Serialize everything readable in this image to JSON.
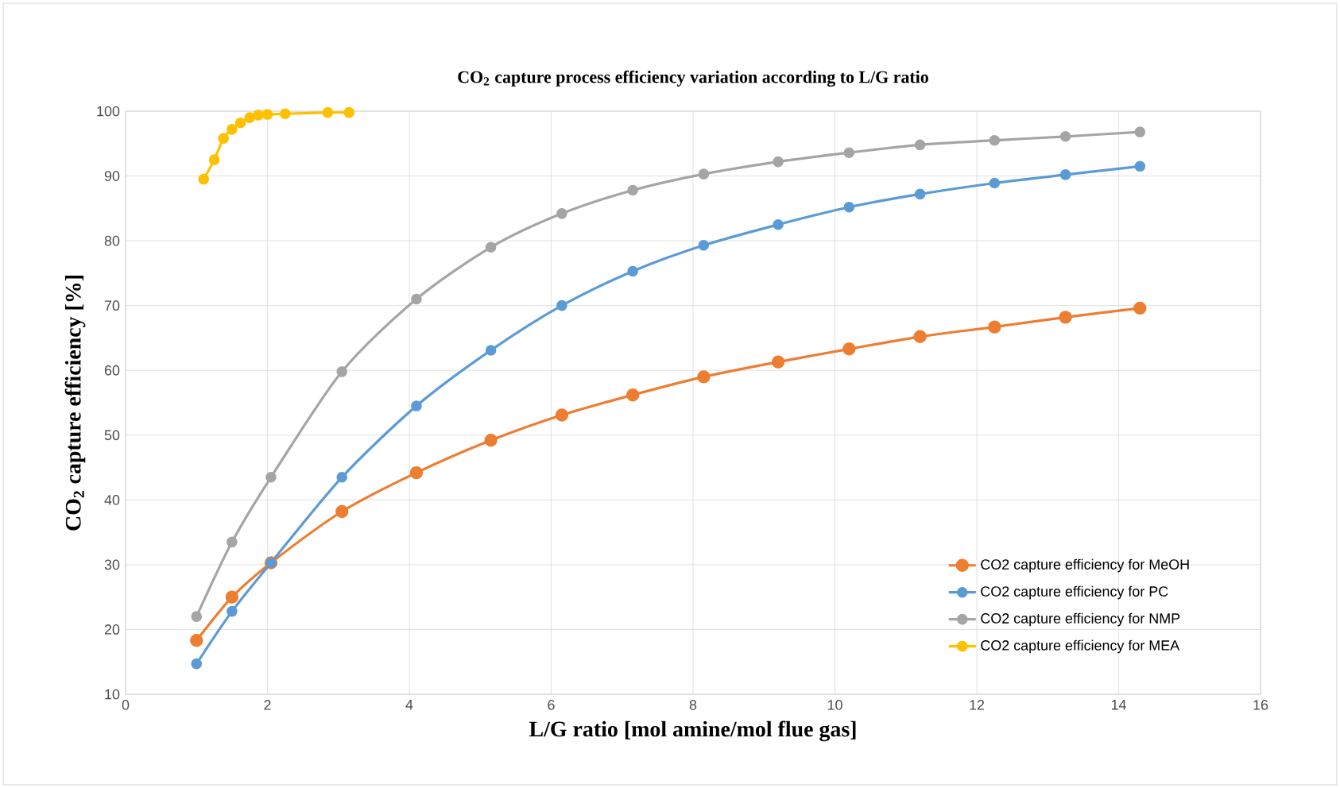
{
  "chart_data": {
    "type": "line",
    "title": "CO$_{2}$ capture process efficiency variation according to L/G ratio",
    "xlabel": "L/G ratio [mol  amine/mol  flue gas]",
    "ylabel": "CO$_{2}$ capture efficiency [%]",
    "xlim": [
      0,
      16
    ],
    "xticks": [
      0,
      2,
      4,
      6,
      8,
      10,
      12,
      14,
      16
    ],
    "ylim": [
      10,
      100
    ],
    "yticks": [
      10,
      20,
      30,
      40,
      50,
      60,
      70,
      80,
      90,
      100
    ],
    "grid": true,
    "legend": "bottom right",
    "marker": "circle",
    "line_style": "solid",
    "series": [
      {
        "name": "CO2 capture efficiency for MeOH",
        "color": "#ed7d31",
        "x": [
          1,
          1.5,
          2.05,
          3.05,
          4.1,
          5.15,
          6.15,
          7.15,
          8.15,
          9.2,
          10.2,
          11.2,
          12.25,
          13.25,
          14.3
        ],
        "values": [
          18.3,
          25,
          30.3,
          38.2,
          44.2,
          49.2,
          53.1,
          56.2,
          59,
          61.3,
          63.3,
          65.2,
          66.7,
          68.2,
          69.6
        ]
      },
      {
        "name": "CO2 capture efficiency for PC",
        "color": "#5b9bd5",
        "x": [
          1,
          1.5,
          2.05,
          3.05,
          4.1,
          5.15,
          6.15,
          7.15,
          8.15,
          9.2,
          10.2,
          11.2,
          12.25,
          13.25,
          14.3
        ],
        "values": [
          14.7,
          22.8,
          30.3,
          43.5,
          54.5,
          63.1,
          70,
          75.3,
          79.3,
          82.5,
          85.2,
          87.2,
          88.9,
          90.2,
          91.5
        ]
      },
      {
        "name": "CO2 capture efficiency for NMP",
        "color": "#a5a5a5",
        "x": [
          1,
          1.5,
          2.05,
          3.05,
          4.1,
          5.15,
          6.15,
          7.15,
          8.15,
          9.2,
          10.2,
          11.2,
          12.25,
          13.25,
          14.3
        ],
        "values": [
          22,
          33.5,
          43.5,
          59.8,
          71,
          79,
          84.2,
          87.8,
          90.3,
          92.2,
          93.6,
          94.8,
          95.5,
          96.1,
          96.8
        ]
      },
      {
        "name": "CO2 capture efficiency for MEA",
        "color": "#ffc000",
        "x": [
          1.1,
          1.25,
          1.38,
          1.5,
          1.62,
          1.75,
          1.87,
          2.0,
          2.25,
          2.85,
          3.15
        ],
        "values": [
          89.5,
          92.5,
          95.8,
          97.2,
          98.2,
          99,
          99.4,
          99.5,
          99.6,
          99.8,
          99.8
        ]
      }
    ]
  }
}
